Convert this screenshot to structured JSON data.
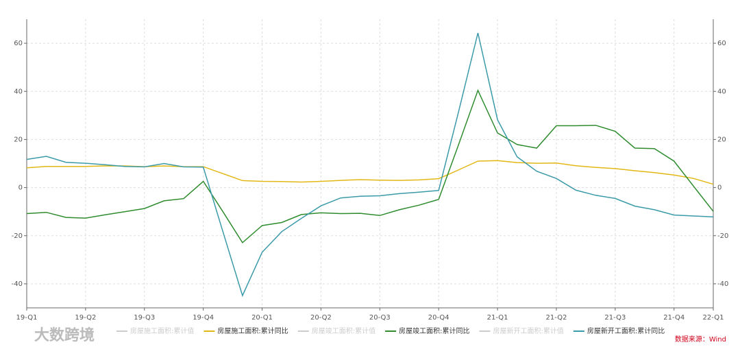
{
  "chart_data": {
    "type": "line",
    "categories": [
      "19-Q1",
      null,
      null,
      "19-Q2",
      null,
      null,
      "19-Q3",
      null,
      null,
      "19-Q4",
      null,
      null,
      "20-Q1",
      null,
      null,
      "20-Q2",
      null,
      null,
      "20-Q3",
      null,
      null,
      "20-Q4",
      null,
      null,
      "21-Q1",
      null,
      null,
      "21-Q2",
      null,
      null,
      "21-Q3",
      null,
      null,
      "21-Q4",
      null,
      "22-Q1"
    ],
    "series": [
      {
        "name": "房屋施工面积:累计同比",
        "color": "#e2b714",
        "values": [
          8.2,
          8.8,
          8.8,
          8.8,
          9.0,
          9.0,
          8.7,
          9.0,
          8.7,
          8.7,
          5.8,
          2.9,
          2.6,
          2.5,
          2.3,
          2.6,
          3.0,
          3.3,
          3.1,
          3.0,
          3.2,
          3.7,
          7.3,
          11.0,
          11.2,
          10.4,
          10.1,
          10.2,
          9.1,
          8.4,
          7.9,
          7.0,
          6.2,
          5.2,
          3.8,
          1.4
        ]
      },
      {
        "name": "房屋竣工面积:累计同比",
        "color": "#2e8b2e",
        "values": [
          -10.8,
          -10.3,
          -12.4,
          -12.7,
          -11.3,
          -10.0,
          -8.7,
          -5.5,
          -4.6,
          2.6,
          -10.0,
          -22.9,
          -15.8,
          -14.5,
          -11.2,
          -10.5,
          -10.8,
          -10.7,
          -11.6,
          -9.2,
          -7.3,
          -4.9,
          17.5,
          40.4,
          22.7,
          17.9,
          16.4,
          25.7,
          25.7,
          25.9,
          23.4,
          16.4,
          16.2,
          11.0,
          0.5,
          -9.9
        ]
      },
      {
        "name": "房屋新开工面积:累计同比",
        "color": "#3a9aa8",
        "values": [
          11.7,
          13.0,
          10.5,
          10.1,
          9.5,
          8.8,
          8.6,
          10.0,
          8.6,
          8.5,
          -18.3,
          -44.9,
          -26.9,
          -18.3,
          -12.8,
          -7.6,
          -4.3,
          -3.6,
          -3.4,
          -2.5,
          -1.9,
          -1.2,
          31.0,
          64.3,
          28.2,
          12.8,
          6.8,
          3.8,
          -1.1,
          -3.2,
          -4.5,
          -7.7,
          -9.2,
          -11.4,
          -11.8,
          -12.2
        ]
      }
    ],
    "hidden_series": [
      {
        "name": "房屋施工面积:累计值",
        "color": "#cccccc"
      },
      {
        "name": "房屋竣工面积:累计值",
        "color": "#cccccc"
      },
      {
        "name": "房屋新开工面积:累计值",
        "color": "#cccccc"
      }
    ],
    "ylim": [
      -50,
      70
    ],
    "yticks": [
      -40,
      -20,
      0,
      20,
      40,
      60
    ],
    "y2lim": [
      -50,
      70
    ],
    "y2ticks": [
      -40,
      -20,
      0,
      20,
      40,
      60
    ],
    "grid": true,
    "source": "数据来源：Wind",
    "watermark": "大数跨境"
  }
}
